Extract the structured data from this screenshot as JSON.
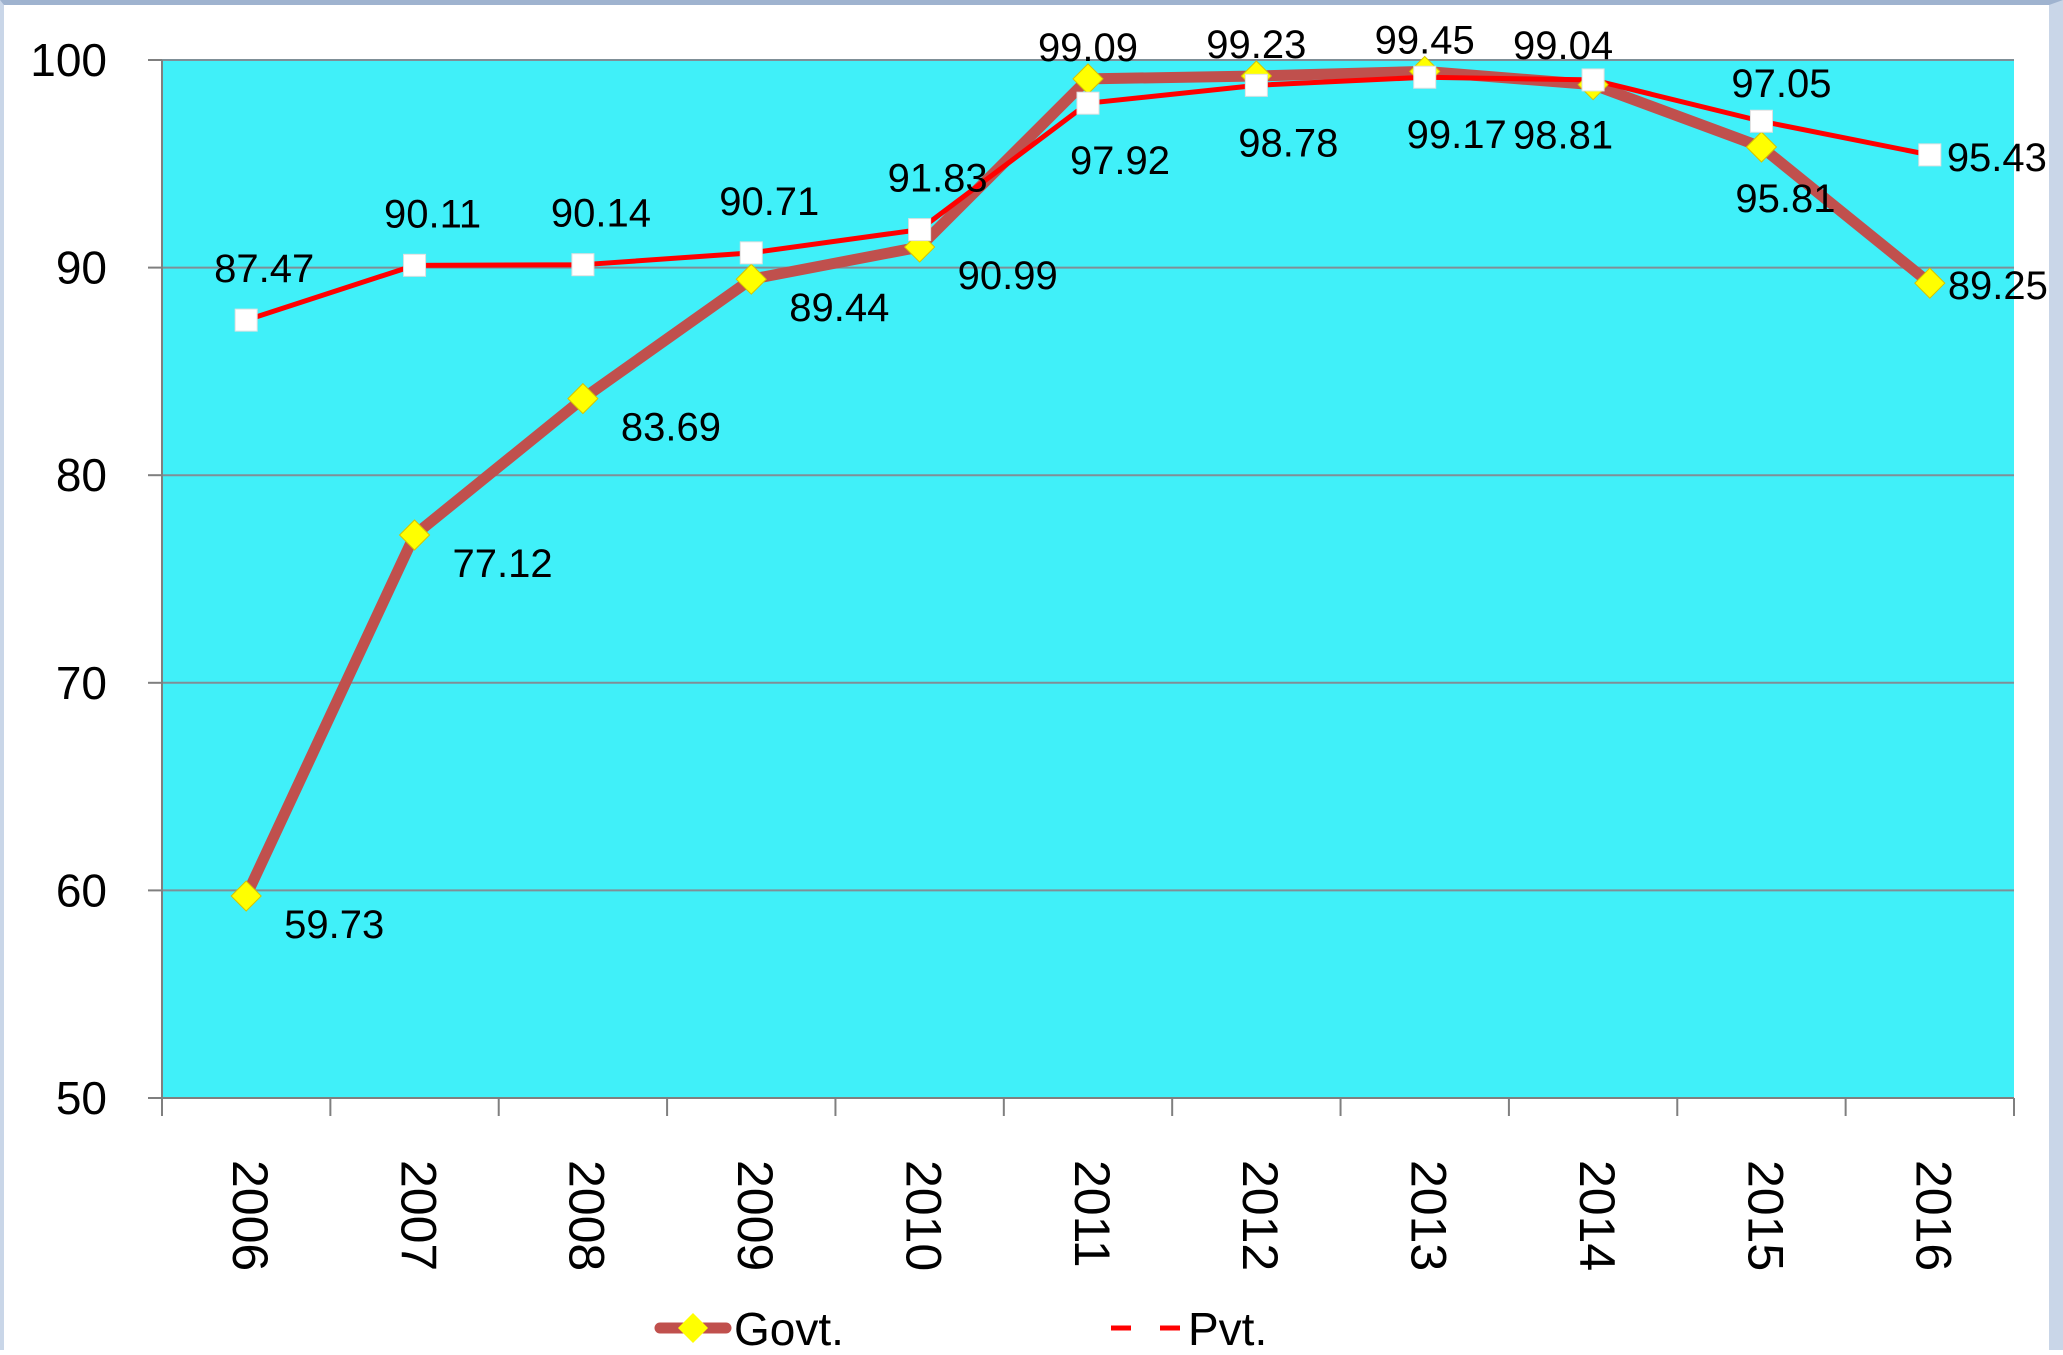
{
  "chart_data": {
    "type": "line",
    "title": "",
    "xlabel": "",
    "ylabel": "",
    "categories": [
      "2006",
      "2007",
      "2008",
      "2009",
      "2010",
      "2011",
      "2012",
      "2013",
      "2014",
      "2015",
      "2016"
    ],
    "ylim": [
      50,
      100
    ],
    "yticks": [
      "50",
      "60",
      "70",
      "80",
      "90",
      "100"
    ],
    "grid": true,
    "legend_position": "bottom",
    "plot_background": "#40f0f9",
    "series": [
      {
        "name": "Govt.",
        "values": [
          59.73,
          77.12,
          83.69,
          89.44,
          90.99,
          99.09,
          99.23,
          99.45,
          98.81,
          95.81,
          89.25
        ],
        "labels": [
          "59.73",
          "77.12",
          "83.69",
          "89.44",
          "90.99",
          "99.09",
          "99.23",
          "99.45",
          "98.81",
          "95.81",
          "89.25"
        ],
        "line_color": "#c0504d",
        "marker": "diamond",
        "marker_color": "#ffff00"
      },
      {
        "name": "Pvt.",
        "values": [
          87.47,
          90.11,
          90.14,
          90.71,
          91.83,
          97.92,
          98.78,
          99.17,
          99.04,
          97.05,
          95.43
        ],
        "labels": [
          "87.47",
          "90.11",
          "90.14",
          "90.71",
          "91.83",
          "97.92",
          "98.78",
          "99.17",
          "99.04",
          "97.05",
          "95.43"
        ],
        "line_color": "#ff0000",
        "marker": "square",
        "marker_color": "#ffffff"
      }
    ]
  }
}
